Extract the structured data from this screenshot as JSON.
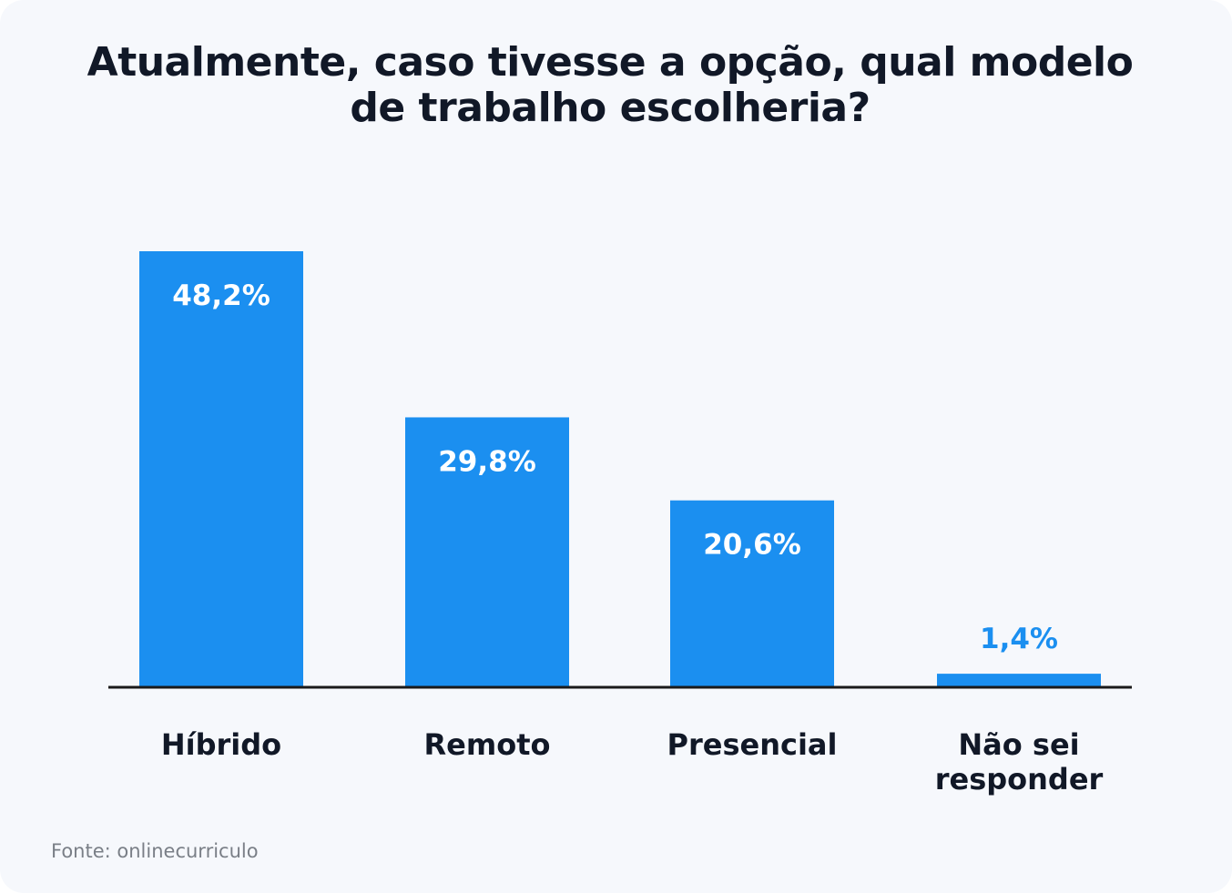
{
  "chart_data": {
    "type": "bar",
    "title": "Atualmente, caso tivesse a opção, qual modelo de trabalho escolheria?",
    "categories": [
      "Híbrido",
      "Remoto",
      "Presencial",
      "Não sei responder"
    ],
    "values": [
      48.2,
      29.8,
      20.6,
      1.4
    ],
    "value_labels": [
      "48,2%",
      "29,8%",
      "20,6%",
      "1,4%"
    ],
    "ylim": [
      0,
      48.2
    ],
    "grid": false,
    "legend": "none",
    "bar_color": "#1b8ff0",
    "value_label_inside_color": "#ffffff",
    "value_label_outside_color": "#1b8ff0",
    "label_color": "#111827",
    "source": "Fonte: onlinecurriculo"
  }
}
